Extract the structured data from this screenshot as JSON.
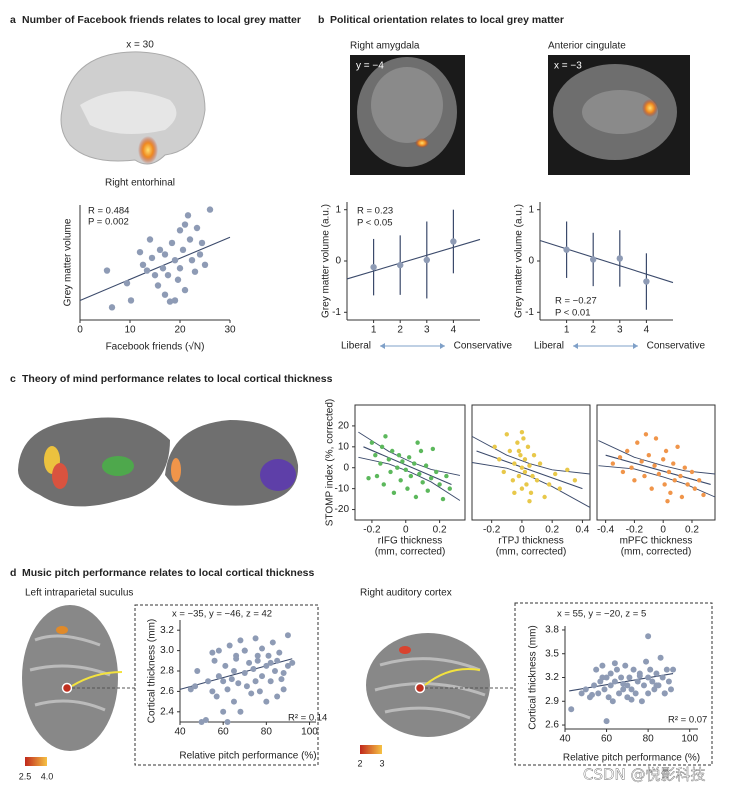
{
  "panels": [
    {
      "letter": "a",
      "title": "Number of Facebook friends relates to local grey matter"
    },
    {
      "letter": "b",
      "title": "Political orientation relates to local grey matter"
    },
    {
      "letter": "c",
      "title": "Theory of mind performance relates to local cortical thickness"
    },
    {
      "letter": "d",
      "title": "Music pitch performance relates to local cortical thickness"
    }
  ],
  "image_labels": [
    "x = 30",
    "Right entorhinal",
    "Right amygdala",
    "y = −4",
    "Anterior cingulate",
    "x = −3",
    "Left intraparietal suculus",
    "Right auditory cortex"
  ],
  "colorbar_labels": [
    [
      "2.5",
      "4.0"
    ],
    [
      "2",
      "3"
    ]
  ],
  "watermark": "CSDN @悦影科技",
  "chart_data": [
    {
      "type": "scatter",
      "x_label": [
        "Facebook friends (√N)"
      ],
      "y_label": "Grey matter volume",
      "color": "#8e9bb5",
      "line_color": "#3b4a6b",
      "annotations": [
        "R = 0.484",
        "P = 0.002"
      ],
      "x": [
        5.4,
        6.4,
        9.4,
        10.2,
        12,
        12.6,
        13.4,
        14.4,
        15,
        15.6,
        16,
        16.6,
        17,
        17.6,
        18,
        18.4,
        19,
        19.6,
        20,
        20,
        20.6,
        21,
        21.6,
        22,
        22.4,
        23,
        23.4,
        24,
        24.4,
        25,
        26,
        19,
        14,
        21,
        17
      ],
      "values": [
        4.3,
        1.1,
        3.2,
        1.7,
        5.9,
        4.8,
        4.3,
        5.4,
        3.9,
        3,
        6.1,
        4.5,
        2.2,
        3.9,
        1.6,
        6.7,
        5.2,
        3.5,
        7.8,
        4.5,
        6.1,
        2.6,
        9.1,
        7,
        5.2,
        4.2,
        8,
        5.7,
        6.7,
        4.8,
        9.6,
        1.7,
        7,
        8.3,
        5.7
      ],
      "fit": {
        "x": [
          0,
          30
        ],
        "y": [
          1.7,
          7.2
        ]
      },
      "xlim": [
        0,
        30
      ],
      "xticks": [
        0,
        10,
        20,
        30
      ],
      "ylim": [
        0,
        10
      ]
    },
    {
      "type": "errorbar",
      "y_label": "Grey matter volume (a.u.)",
      "color": "#8e9bb5",
      "line_color": "#3b4a6b",
      "annotations": [
        "R = 0.23",
        "P < 0.05"
      ],
      "x_axis_ends": [
        "Liberal",
        "Conservative"
      ],
      "x": [
        1,
        2,
        3,
        4
      ],
      "values": [
        -0.12,
        -0.08,
        0.02,
        0.38
      ],
      "errors": [
        0.55,
        0.58,
        0.75,
        0.62
      ],
      "fit": {
        "x": [
          0,
          5
        ],
        "y": [
          -0.35,
          0.42
        ]
      },
      "xlim": [
        0,
        5
      ],
      "xticks": [
        1,
        2,
        3,
        4
      ],
      "ylim": [
        -1.15,
        1.15
      ],
      "yticks": [
        -1,
        0,
        1
      ]
    },
    {
      "type": "errorbar",
      "y_label": "Grey matter volume (a.u.)",
      "color": "#8e9bb5",
      "line_color": "#3b4a6b",
      "annotations": [
        "R = −0.27",
        "P < 0.01"
      ],
      "x_axis_ends": [
        "Liberal",
        "Conservative"
      ],
      "x": [
        1,
        2,
        3,
        4
      ],
      "values": [
        0.22,
        0.03,
        0.05,
        -0.4
      ],
      "errors": [
        0.55,
        0.52,
        0.55,
        0.55
      ],
      "fit": {
        "x": [
          0,
          5
        ],
        "y": [
          0.4,
          -0.42
        ]
      },
      "xlim": [
        0,
        5
      ],
      "xticks": [
        1,
        2,
        3,
        4
      ],
      "ylim": [
        -1.15,
        1.15
      ],
      "yticks": [
        -1,
        0,
        1
      ]
    },
    {
      "type": "scatter",
      "x_label": [
        "rIFG thickness",
        "(mm, corrected)"
      ],
      "y_label": "STOMP index (%, corrected)",
      "color": "#5cb85c",
      "line_color": "#3b4a6b",
      "x": [
        -0.2,
        -0.18,
        -0.17,
        -0.15,
        -0.13,
        -0.12,
        -0.1,
        -0.09,
        -0.08,
        -0.07,
        -0.05,
        -0.04,
        -0.03,
        -0.02,
        0,
        0.01,
        0.02,
        0.03,
        0.05,
        0.06,
        0.08,
        0.09,
        0.1,
        0.12,
        0.13,
        0.15,
        0.16,
        0.18,
        0.2,
        0.22,
        0.24,
        0.26,
        -0.22,
        0.07,
        -0.14
      ],
      "values": [
        12,
        6,
        -4,
        2,
        -8,
        15,
        4,
        -2,
        8,
        -12,
        0,
        6,
        -6,
        3,
        -1,
        -10,
        5,
        -4,
        2,
        -14,
        -3,
        8,
        -7,
        1,
        -11,
        -5,
        9,
        -2,
        -8,
        -15,
        -4,
        -10,
        -5,
        12,
        10
      ],
      "fit": {
        "x": [
          -0.25,
          0.27
        ],
        "y": [
          10,
          -8
        ]
      },
      "ci": {
        "x": [
          -0.28,
          -0.1,
          0.03,
          0.15,
          0.32
        ],
        "upper": [
          17,
          7.8,
          2.8,
          -0.8,
          -3.7
        ],
        "lower": [
          5,
          1.8,
          -2.2,
          -6.8,
          -15.7
        ]
      },
      "xlim": [
        -0.3,
        0.35
      ],
      "xticks": [
        -0.2,
        0,
        0.2
      ],
      "ylim": [
        -25,
        30
      ],
      "yticks": [
        -20,
        -10,
        0,
        10,
        20
      ]
    },
    {
      "type": "scatter",
      "x_label": [
        "rTPJ thickness",
        "(mm, corrected)"
      ],
      "color": "#e8c84a",
      "line_color": "#3b4a6b",
      "x": [
        -0.18,
        -0.15,
        -0.12,
        -0.1,
        -0.08,
        -0.06,
        -0.05,
        -0.03,
        -0.02,
        -0.01,
        0,
        0,
        0.01,
        0.02,
        0.02,
        0.03,
        0.04,
        0.05,
        0.06,
        0.07,
        0.08,
        0.1,
        0.12,
        0.15,
        0.18,
        0.22,
        0.25,
        0.3,
        0.35,
        -0.05,
        0,
        0.05,
        -0.02
      ],
      "values": [
        10,
        4,
        -2,
        16,
        8,
        -6,
        2,
        12,
        -4,
        6,
        0,
        -10,
        14,
        -2,
        4,
        -8,
        10,
        1,
        -12,
        -4,
        6,
        -6,
        2,
        -14,
        -8,
        -3,
        -10,
        -1,
        -6,
        -12,
        17,
        -16,
        8
      ],
      "fit": {
        "x": [
          -0.3,
          0.4
        ],
        "y": [
          8,
          -10
        ]
      },
      "ci": {
        "x": [
          -0.33,
          -0.1,
          0.05,
          0.2,
          0.45
        ],
        "upper": [
          15,
          6,
          2,
          -1,
          -3
        ],
        "lower": [
          2.5,
          -0.2,
          -4,
          -9,
          -19
        ]
      },
      "xlim": [
        -0.33,
        0.45
      ],
      "xticks": [
        -0.2,
        0,
        0.2,
        0.4
      ],
      "ylim": [
        -25,
        30
      ]
    },
    {
      "type": "scatter",
      "x_label": [
        "mPFC thickness",
        "(mm, corrected)"
      ],
      "color": "#f0954a",
      "line_color": "#3b4a6b",
      "x": [
        -0.35,
        -0.3,
        -0.28,
        -0.25,
        -0.22,
        -0.2,
        -0.18,
        -0.15,
        -0.13,
        -0.1,
        -0.08,
        -0.06,
        -0.05,
        -0.03,
        0,
        0.01,
        0.02,
        0.04,
        0.05,
        0.07,
        0.08,
        0.1,
        0.12,
        0.13,
        0.15,
        0.17,
        0.2,
        0.22,
        0.25,
        0.28,
        -0.12,
        0.03
      ],
      "values": [
        2,
        5,
        -2,
        8,
        0,
        -6,
        12,
        3,
        -4,
        6,
        -10,
        1,
        14,
        -3,
        4,
        -8,
        8,
        -2,
        -12,
        2,
        -6,
        10,
        -4,
        -14,
        0,
        -8,
        -2,
        -10,
        -6,
        -13,
        16,
        -16
      ],
      "fit": {
        "x": [
          -0.4,
          0.33
        ],
        "y": [
          6,
          -8
        ]
      },
      "ci": {
        "x": [
          -0.45,
          -0.2,
          0,
          0.15,
          0.36
        ],
        "upper": [
          13,
          5,
          1,
          -1.5,
          -3
        ],
        "lower": [
          1,
          -0.6,
          -4.4,
          -7.7,
          -14
        ]
      },
      "xlim": [
        -0.46,
        0.36
      ],
      "xticks": [
        -0.4,
        -0.2,
        0,
        0.2
      ],
      "ylim": [
        -25,
        30
      ]
    },
    {
      "type": "scatter",
      "x_label": [
        "Relative pitch performance (%)"
      ],
      "y_label": "Cortical thickness (mm)",
      "color": "#8e9bb5",
      "line_color": "#3b4a6b",
      "annotations": [
        "x = −35, y = −46, z = 42",
        "R² = 0.14"
      ],
      "x": [
        45,
        47,
        50,
        52,
        53,
        55,
        56,
        57,
        58,
        58,
        60,
        60,
        61,
        62,
        63,
        64,
        65,
        65,
        66,
        67,
        68,
        68,
        70,
        70,
        71,
        72,
        73,
        74,
        75,
        75,
        76,
        77,
        78,
        78,
        80,
        80,
        81,
        82,
        83,
        84,
        85,
        85,
        86,
        87,
        88,
        90,
        90,
        92,
        55,
        62,
        70,
        76,
        82,
        88,
        48,
        66
      ],
      "values": [
        2.62,
        2.65,
        2.3,
        2.32,
        2.7,
        2.6,
        2.9,
        2.55,
        2.75,
        3.0,
        2.4,
        2.7,
        2.85,
        2.62,
        3.05,
        2.72,
        2.5,
        2.8,
        2.95,
        2.68,
        3.1,
        2.4,
        2.78,
        3.0,
        2.65,
        2.88,
        2.58,
        2.82,
        3.12,
        2.7,
        2.9,
        2.6,
        3.02,
        2.75,
        2.85,
        2.5,
        2.95,
        2.7,
        3.08,
        2.8,
        2.55,
        2.9,
        2.98,
        2.72,
        2.62,
        3.15,
        2.85,
        2.88,
        2.98,
        2.3,
        3.0,
        2.95,
        2.88,
        2.78,
        2.8,
        2.92
      ],
      "fit": {
        "x": [
          40,
          92
        ],
        "y": [
          2.62,
          2.92
        ]
      },
      "xlim": [
        40,
        103
      ],
      "xticks": [
        40,
        60,
        80,
        100
      ],
      "ylim": [
        2.3,
        3.3
      ],
      "yticks": [
        2.4,
        2.6,
        2.8,
        {
          "value": 3,
          "label": "3.0"
        },
        3.2
      ]
    },
    {
      "type": "scatter",
      "x_label": [
        "Relative pitch performance (%)"
      ],
      "y_label": "Cortical thickness (mm)",
      "color": "#8e9bb5",
      "line_color": "#3b4a6b",
      "annotations": [
        "x = 55, y = −20, z = 5",
        "R² = 0.07"
      ],
      "x": [
        43,
        48,
        50,
        52,
        54,
        55,
        56,
        57,
        58,
        59,
        60,
        61,
        62,
        62,
        63,
        64,
        65,
        66,
        67,
        68,
        69,
        70,
        70,
        71,
        72,
        73,
        74,
        75,
        76,
        77,
        78,
        79,
        80,
        80,
        81,
        82,
        83,
        84,
        85,
        86,
        87,
        88,
        89,
        90,
        91,
        92,
        53,
        58,
        64,
        68,
        72,
        76,
        80,
        84,
        88,
        60
      ],
      "values": [
        2.8,
        3.0,
        3.05,
        2.95,
        3.1,
        3.3,
        3.0,
        3.15,
        3.35,
        3.05,
        3.2,
        2.95,
        3.1,
        3.25,
        2.9,
        3.15,
        3.3,
        3.0,
        3.2,
        3.05,
        3.35,
        3.1,
        2.95,
        3.2,
        3.05,
        3.3,
        3.0,
        3.15,
        3.25,
        2.9,
        3.1,
        3.4,
        3.2,
        3.0,
        3.3,
        3.15,
        3.05,
        3.25,
        3.1,
        3.45,
        3.2,
        3.0,
        3.3,
        3.15,
        3.05,
        3.3,
        2.98,
        3.2,
        3.38,
        3.12,
        2.92,
        3.22,
        3.72,
        3.1,
        3.0,
        2.65
      ],
      "fit": {
        "x": [
          42,
          92
        ],
        "y": [
          3.03,
          3.25
        ]
      },
      "xlim": [
        40,
        104
      ],
      "xticks": [
        40,
        60,
        80,
        100
      ],
      "ylim": [
        2.55,
        3.85
      ],
      "yticks": [
        2.6,
        2.9,
        3.2,
        3.5,
        3.8
      ]
    }
  ]
}
